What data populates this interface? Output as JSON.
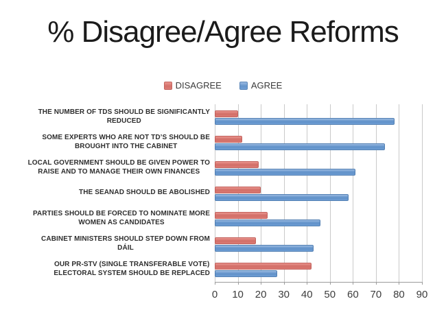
{
  "title": "% Disagree/Agree Reforms",
  "legend": {
    "items": [
      {
        "label": "DISAGREE",
        "color": "#d9736d"
      },
      {
        "label": "AGREE",
        "color": "#6f9cd4"
      }
    ]
  },
  "chart_data": {
    "type": "bar",
    "orientation": "horizontal",
    "title": "% Disagree/Agree Reforms",
    "categories": [
      "THE NUMBER OF TDS SHOULD BE SIGNIFICANTLY REDUCED",
      "SOME EXPERTS WHO ARE NOT TD’S SHOULD BE BROUGHT INTO THE CABINET",
      "LOCAL GOVERNMENT SHOULD BE GIVEN POWER TO RAISE AND TO MANAGE THEIR OWN FINANCES",
      "THE SEANAD SHOULD BE ABOLISHED",
      "PARTIES SHOULD BE FORCED TO NOMINATE MORE WOMEN AS CANDIDATES",
      "CABINET MINISTERS SHOULD STEP DOWN FROM DÁIL",
      "OUR PR-STV (SINGLE TRANSFERABLE VOTE) ELECTORAL SYSTEM SHOULD BE REPLACED"
    ],
    "category_lines": [
      [
        "THE NUMBER OF TDS SHOULD BE SIGNIFICANTLY",
        "REDUCED"
      ],
      [
        "SOME EXPERTS WHO ARE NOT TD’S SHOULD BE",
        "BROUGHT INTO THE CABINET"
      ],
      [
        "LOCAL GOVERNMENT SHOULD BE GIVEN POWER TO",
        "RAISE AND TO MANAGE THEIR OWN FINANCES"
      ],
      [
        "THE SEANAD SHOULD BE ABOLISHED"
      ],
      [
        "PARTIES SHOULD BE FORCED TO NOMINATE MORE",
        "WOMEN AS CANDIDATES"
      ],
      [
        "CABINET MINISTERS SHOULD STEP DOWN FROM",
        "DÁIL"
      ],
      [
        "OUR PR-STV (SINGLE TRANSFERABLE VOTE)",
        "ELECTORAL SYSTEM SHOULD BE REPLACED"
      ]
    ],
    "series": [
      {
        "name": "DISAGREE",
        "color": "#d9736d",
        "values": [
          10,
          12,
          19,
          20,
          23,
          18,
          42
        ]
      },
      {
        "name": "AGREE",
        "color": "#6f9cd4",
        "values": [
          78,
          74,
          61,
          58,
          46,
          43,
          27
        ]
      }
    ],
    "xlabel": "",
    "ylabel": "",
    "xlim": [
      0,
      90
    ],
    "xticks": [
      0,
      10,
      20,
      30,
      40,
      50,
      60,
      70,
      80,
      90
    ],
    "grid": true,
    "legend_position": "top"
  }
}
